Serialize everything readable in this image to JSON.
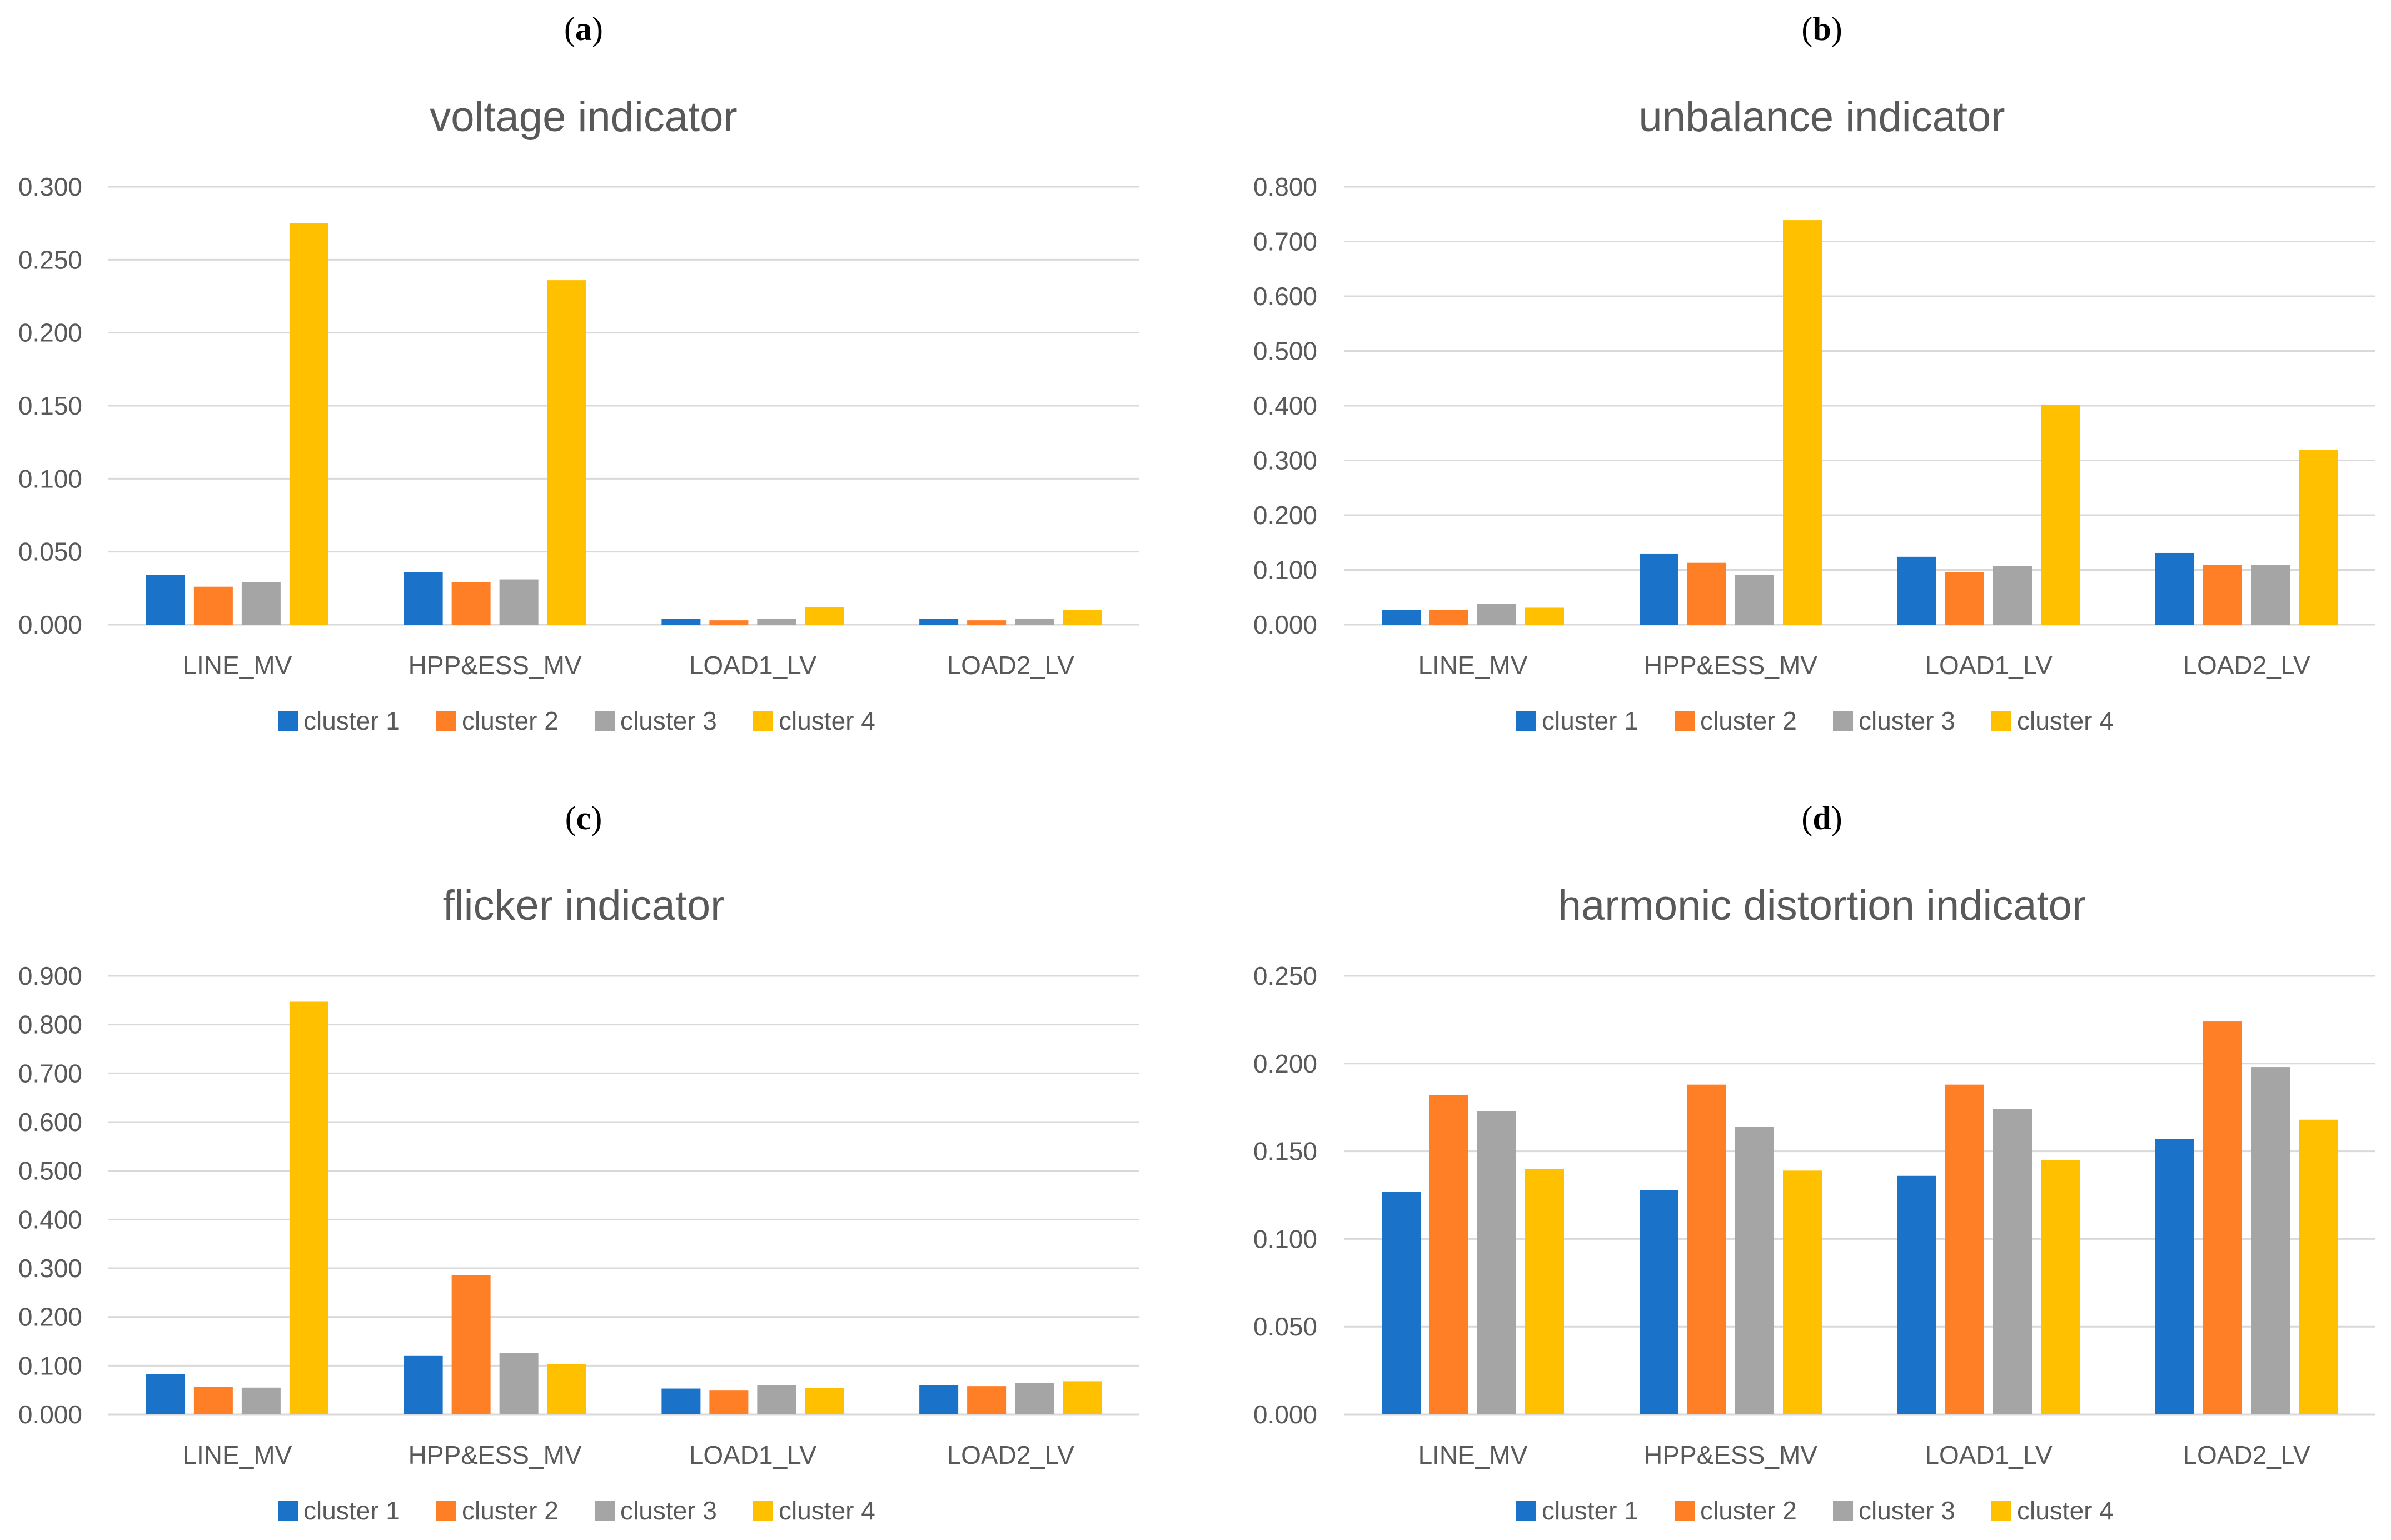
{
  "figure": {
    "panels": [
      "(a)",
      "(b)",
      "(c)",
      "(d)"
    ]
  },
  "chart_data": [
    {
      "panel": "a",
      "type": "bar",
      "title": "voltage indicator",
      "categories": [
        "LINE_MV",
        "HPP&ESS_MV",
        "LOAD1_LV",
        "LOAD2_LV"
      ],
      "ylim": [
        0,
        0.3
      ],
      "yticks": [
        "0.000",
        "0.050",
        "0.100",
        "0.150",
        "0.200",
        "0.250",
        "0.300"
      ],
      "series": [
        {
          "name": "cluster 1",
          "values": [
            0.034,
            0.036,
            0.004,
            0.004
          ]
        },
        {
          "name": "cluster 2",
          "values": [
            0.026,
            0.029,
            0.003,
            0.003
          ]
        },
        {
          "name": "cluster 3",
          "values": [
            0.029,
            0.031,
            0.004,
            0.004
          ]
        },
        {
          "name": "cluster 4",
          "values": [
            0.275,
            0.236,
            0.012,
            0.01
          ]
        }
      ],
      "legend": "bottom",
      "grid": true
    },
    {
      "panel": "b",
      "type": "bar",
      "title": "unbalance indicator",
      "categories": [
        "LINE_MV",
        "HPP&ESS_MV",
        "LOAD1_LV",
        "LOAD2_LV"
      ],
      "ylim": [
        0,
        0.8
      ],
      "yticks": [
        "0.000",
        "0.100",
        "0.200",
        "0.300",
        "0.400",
        "0.500",
        "0.600",
        "0.700",
        "0.800"
      ],
      "series": [
        {
          "name": "cluster 1",
          "values": [
            0.027,
            0.13,
            0.124,
            0.131
          ]
        },
        {
          "name": "cluster 2",
          "values": [
            0.027,
            0.113,
            0.096,
            0.109
          ]
        },
        {
          "name": "cluster 3",
          "values": [
            0.038,
            0.091,
            0.107,
            0.109
          ]
        },
        {
          "name": "cluster 4",
          "values": [
            0.031,
            0.739,
            0.402,
            0.319
          ]
        }
      ],
      "legend": "bottom",
      "grid": true
    },
    {
      "panel": "c",
      "type": "bar",
      "title": "flicker indicator",
      "categories": [
        "LINE_MV",
        "HPP&ESS_MV",
        "LOAD1_LV",
        "LOAD2_LV"
      ],
      "ylim": [
        0,
        0.9
      ],
      "yticks": [
        "0.000",
        "0.100",
        "0.200",
        "0.300",
        "0.400",
        "0.500",
        "0.600",
        "0.700",
        "0.800",
        "0.900"
      ],
      "series": [
        {
          "name": "cluster 1",
          "values": [
            0.083,
            0.12,
            0.053,
            0.06
          ]
        },
        {
          "name": "cluster 2",
          "values": [
            0.057,
            0.286,
            0.05,
            0.058
          ]
        },
        {
          "name": "cluster 3",
          "values": [
            0.055,
            0.126,
            0.06,
            0.064
          ]
        },
        {
          "name": "cluster 4",
          "values": [
            0.847,
            0.103,
            0.054,
            0.068
          ]
        }
      ],
      "legend": "bottom",
      "grid": true
    },
    {
      "panel": "d",
      "type": "bar",
      "title": "harmonic  distortion indicator",
      "categories": [
        "LINE_MV",
        "HPP&ESS_MV",
        "LOAD1_LV",
        "LOAD2_LV"
      ],
      "ylim": [
        0,
        0.25
      ],
      "yticks": [
        "0.000",
        "0.050",
        "0.100",
        "0.150",
        "0.200",
        "0.250"
      ],
      "series": [
        {
          "name": "cluster 1",
          "values": [
            0.127,
            0.128,
            0.136,
            0.157
          ]
        },
        {
          "name": "cluster 2",
          "values": [
            0.182,
            0.188,
            0.188,
            0.224
          ]
        },
        {
          "name": "cluster 3",
          "values": [
            0.173,
            0.164,
            0.174,
            0.198
          ]
        },
        {
          "name": "cluster 4",
          "values": [
            0.14,
            0.139,
            0.145,
            0.168
          ]
        }
      ],
      "legend": "bottom",
      "grid": true
    }
  ],
  "colors": {
    "cluster 1": "#1a73c8",
    "cluster 2": "#ff7f27",
    "cluster 3": "#a5a5a5",
    "cluster 4": "#ffc000"
  }
}
